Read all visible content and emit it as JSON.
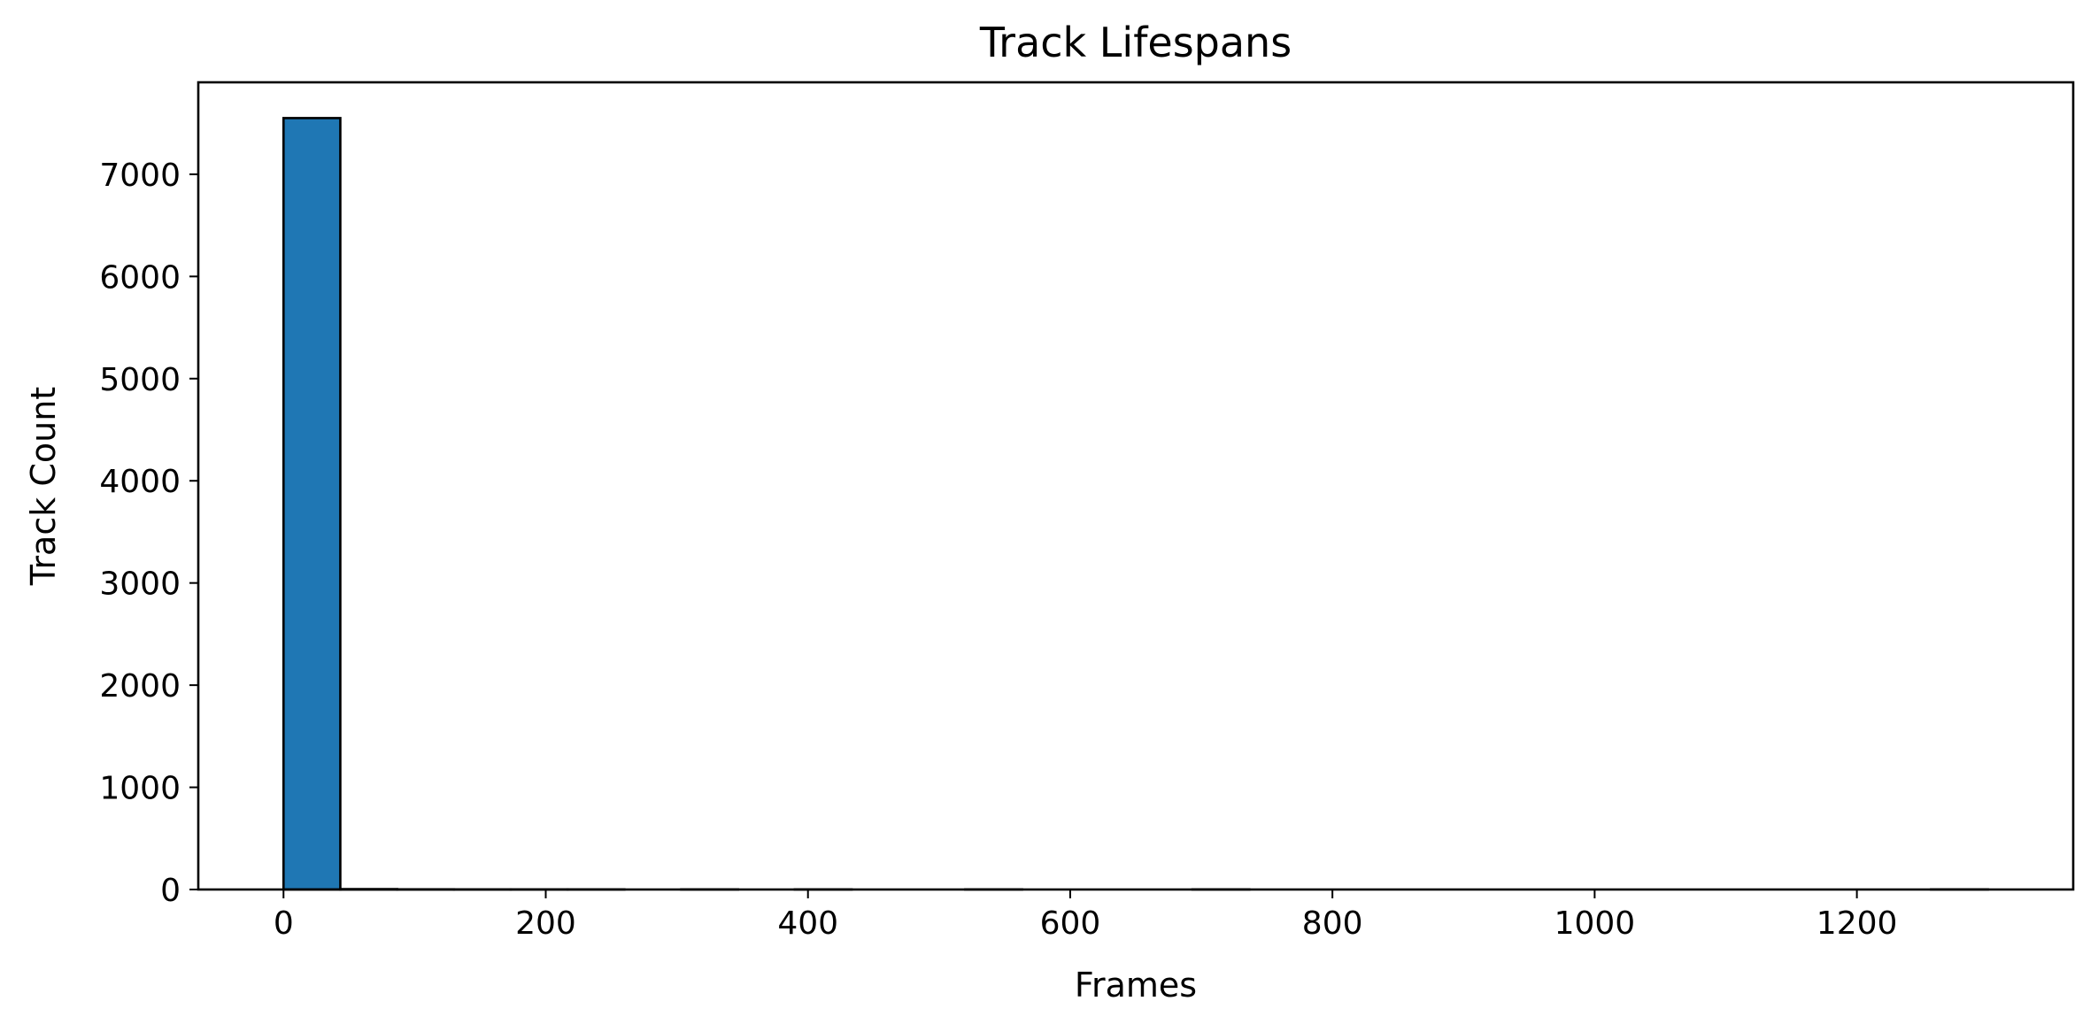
{
  "chart_data": {
    "type": "bar",
    "title": "Track Lifespans",
    "xlabel": "Frames",
    "ylabel": "Track Count",
    "xlim": [
      -65,
      1365
    ],
    "ylim": [
      0,
      7900
    ],
    "xticks": [
      0,
      200,
      400,
      600,
      800,
      1000,
      1200
    ],
    "xtick_labels": [
      "0",
      "200",
      "400",
      "600",
      "800",
      "1000",
      "1200"
    ],
    "yticks": [
      0,
      1000,
      2000,
      3000,
      4000,
      5000,
      6000,
      7000
    ],
    "ytick_labels": [
      "0",
      "1000",
      "2000",
      "3000",
      "4000",
      "5000",
      "6000",
      "7000"
    ],
    "bin_start": 0,
    "bin_width": 43.33,
    "bins": 30,
    "counts": [
      7550,
      4,
      2,
      1,
      1,
      1,
      0,
      1,
      0,
      1,
      0,
      0,
      1,
      0,
      0,
      0,
      1,
      0,
      0,
      0,
      0,
      0,
      0,
      0,
      0,
      0,
      0,
      0,
      0,
      1
    ],
    "bar_color": "#1f77b4",
    "edge_color": "#000000",
    "grid": false,
    "legend": "none"
  }
}
